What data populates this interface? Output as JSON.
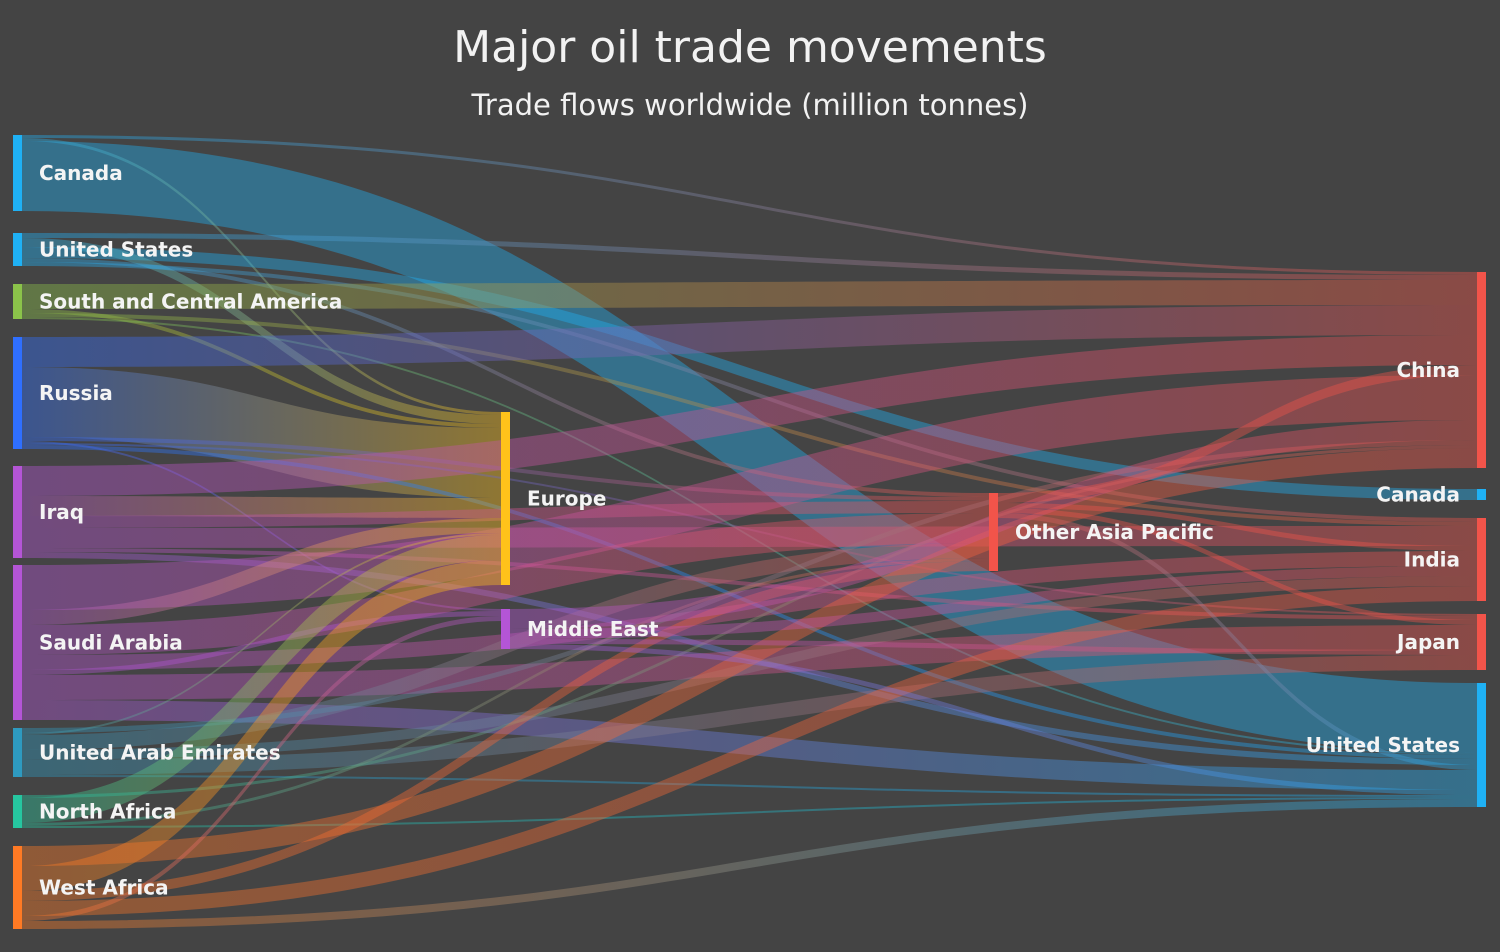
{
  "chart_data": {
    "type": "sankey",
    "title": "Major oil trade movements",
    "subtitle": "Trade flows worldwide (million tonnes)",
    "background": "#444444",
    "link_opacity": 0.4,
    "nodes": [
      {
        "id": "src-canada",
        "label": "Canada",
        "column": 0,
        "color": "#1fb1f5"
      },
      {
        "id": "src-us",
        "label": "United States",
        "column": 0,
        "color": "#1fb1f5"
      },
      {
        "id": "src-sca",
        "label": "South and Central America",
        "column": 0,
        "color": "#8bc34a"
      },
      {
        "id": "src-russia",
        "label": "Russia",
        "column": 0,
        "color": "#2f6fff"
      },
      {
        "id": "src-iraq",
        "label": "Iraq",
        "column": 0,
        "color": "#b455d6"
      },
      {
        "id": "src-saudi",
        "label": "Saudi Arabia",
        "column": 0,
        "color": "#b455d6"
      },
      {
        "id": "src-uae",
        "label": "United Arab Emirates",
        "column": 0,
        "color": "#2e9ac0"
      },
      {
        "id": "src-nafrica",
        "label": "North Africa",
        "column": 0,
        "color": "#26c6a0"
      },
      {
        "id": "src-wafrica",
        "label": "West Africa",
        "column": 0,
        "color": "#ff7a24"
      },
      {
        "id": "mid-europe",
        "label": "Europe",
        "column": 1,
        "color": "#ffc21a"
      },
      {
        "id": "mid-me",
        "label": "Middle East",
        "column": 1,
        "color": "#b455d6"
      },
      {
        "id": "mid-oap",
        "label": "Other Asia Pacific",
        "column": 2,
        "color": "#f2544a"
      },
      {
        "id": "dst-china",
        "label": "China",
        "column": 3,
        "color": "#f2544a"
      },
      {
        "id": "dst-canada",
        "label": "Canada",
        "column": 3,
        "color": "#1fb1f5"
      },
      {
        "id": "dst-india",
        "label": "India",
        "column": 3,
        "color": "#f2544a"
      },
      {
        "id": "dst-japan",
        "label": "Japan",
        "column": 3,
        "color": "#f2544a"
      },
      {
        "id": "dst-us",
        "label": "United States",
        "column": 3,
        "color": "#1fb1f5"
      }
    ],
    "links": [
      {
        "from": "src-canada",
        "to": "dst-us",
        "value": 140
      },
      {
        "from": "src-canada",
        "to": "mid-europe",
        "value": 6
      },
      {
        "from": "src-canada",
        "to": "dst-china",
        "value": 6
      },
      {
        "from": "src-us",
        "to": "dst-canada",
        "value": 22
      },
      {
        "from": "src-us",
        "to": "mid-europe",
        "value": 18
      },
      {
        "from": "src-us",
        "to": "dst-china",
        "value": 10
      },
      {
        "from": "src-us",
        "to": "dst-india",
        "value": 8
      },
      {
        "from": "src-us",
        "to": "mid-oap",
        "value": 8
      },
      {
        "from": "src-sca",
        "to": "dst-china",
        "value": 50
      },
      {
        "from": "src-sca",
        "to": "mid-europe",
        "value": 8
      },
      {
        "from": "src-sca",
        "to": "dst-india",
        "value": 8
      },
      {
        "from": "src-sca",
        "to": "dst-us",
        "value": 4
      },
      {
        "from": "src-russia",
        "to": "dst-china",
        "value": 60
      },
      {
        "from": "src-russia",
        "to": "mid-europe",
        "value": 140
      },
      {
        "from": "src-russia",
        "to": "mid-oap",
        "value": 8
      },
      {
        "from": "src-russia",
        "to": "dst-us",
        "value": 8
      },
      {
        "from": "src-russia",
        "to": "dst-japan",
        "value": 4
      },
      {
        "from": "src-russia",
        "to": "mid-me",
        "value": 4
      },
      {
        "from": "src-iraq",
        "to": "dst-china",
        "value": 60
      },
      {
        "from": "src-iraq",
        "to": "dst-india",
        "value": 40
      },
      {
        "from": "src-iraq",
        "to": "mid-europe",
        "value": 40
      },
      {
        "from": "src-iraq",
        "to": "mid-oap",
        "value": 24
      },
      {
        "from": "src-iraq",
        "to": "dst-us",
        "value": 12
      },
      {
        "from": "src-iraq",
        "to": "dst-japan",
        "value": 8
      },
      {
        "from": "src-saudi",
        "to": "dst-china",
        "value": 90
      },
      {
        "from": "src-saudi",
        "to": "dst-japan",
        "value": 50
      },
      {
        "from": "src-saudi",
        "to": "dst-india",
        "value": 30
      },
      {
        "from": "src-saudi",
        "to": "mid-oap",
        "value": 60
      },
      {
        "from": "src-saudi",
        "to": "mid-europe",
        "value": 30
      },
      {
        "from": "src-saudi",
        "to": "dst-us",
        "value": 40
      },
      {
        "from": "src-saudi",
        "to": "mid-me",
        "value": 10
      },
      {
        "from": "src-uae",
        "to": "dst-japan",
        "value": 30
      },
      {
        "from": "src-uae",
        "to": "mid-oap",
        "value": 30
      },
      {
        "from": "src-uae",
        "to": "dst-india",
        "value": 20
      },
      {
        "from": "src-uae",
        "to": "dst-china",
        "value": 10
      },
      {
        "from": "src-uae",
        "to": "mid-europe",
        "value": 4
      },
      {
        "from": "src-uae",
        "to": "dst-us",
        "value": 4
      },
      {
        "from": "src-nafrica",
        "to": "mid-europe",
        "value": 50
      },
      {
        "from": "src-nafrica",
        "to": "dst-china",
        "value": 6
      },
      {
        "from": "src-nafrica",
        "to": "dst-us",
        "value": 4
      },
      {
        "from": "src-nafrica",
        "to": "mid-oap",
        "value": 6
      },
      {
        "from": "src-wafrica",
        "to": "mid-europe",
        "value": 50
      },
      {
        "from": "src-wafrica",
        "to": "dst-india",
        "value": 30
      },
      {
        "from": "src-wafrica",
        "to": "dst-china",
        "value": 40
      },
      {
        "from": "src-wafrica",
        "to": "dst-us",
        "value": 16
      },
      {
        "from": "src-wafrica",
        "to": "mid-oap",
        "value": 20
      },
      {
        "from": "src-wafrica",
        "to": "mid-me",
        "value": 10
      },
      {
        "from": "mid-me",
        "to": "dst-china",
        "value": 40
      },
      {
        "from": "mid-me",
        "to": "dst-india",
        "value": 20
      },
      {
        "from": "mid-me",
        "to": "dst-japan",
        "value": 10
      },
      {
        "from": "mid-me",
        "to": "dst-us",
        "value": 10
      },
      {
        "from": "mid-oap",
        "to": "dst-china",
        "value": 20
      },
      {
        "from": "mid-oap",
        "to": "dst-india",
        "value": 10
      },
      {
        "from": "mid-oap",
        "to": "dst-japan",
        "value": 10
      },
      {
        "from": "mid-oap",
        "to": "dst-us",
        "value": 10
      }
    ]
  }
}
